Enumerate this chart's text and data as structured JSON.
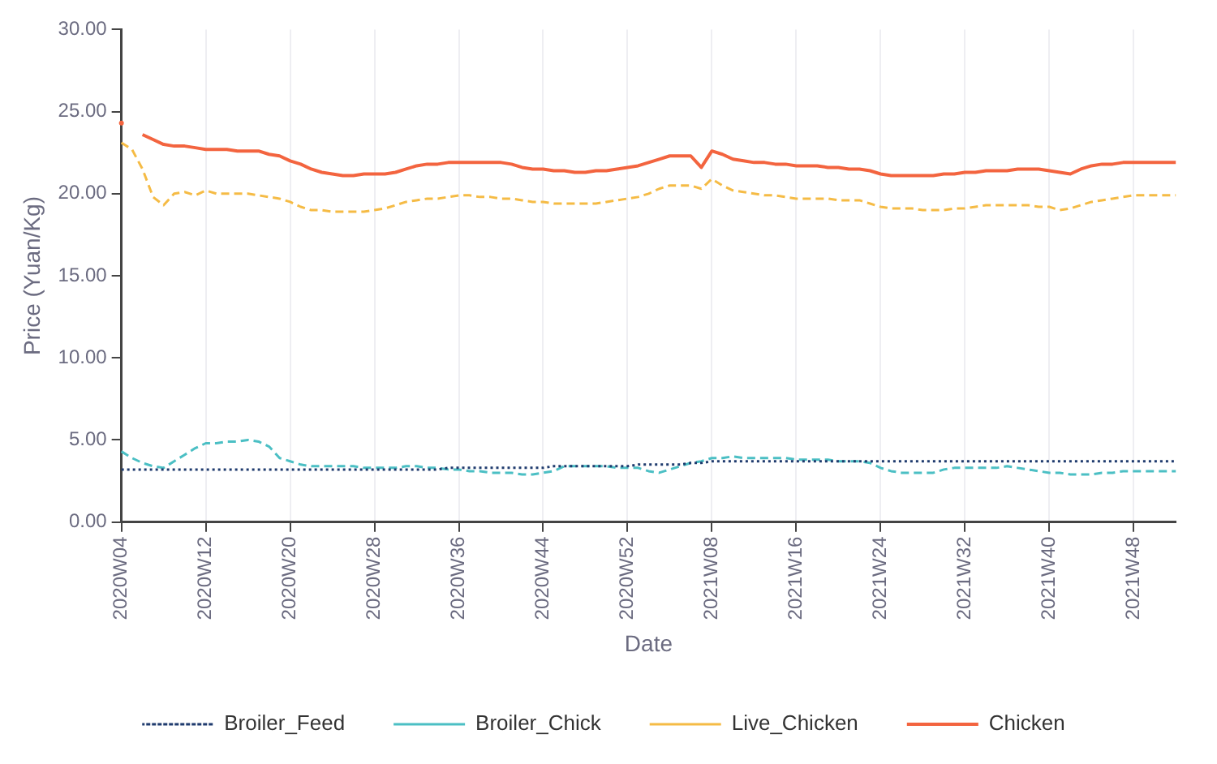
{
  "chart_data": {
    "type": "line",
    "xlabel": "Date",
    "ylabel": "Price (Yuan/Kg)",
    "categories": [
      "2020W04",
      null,
      null,
      null,
      null,
      null,
      null,
      null,
      "2020W12",
      null,
      null,
      null,
      null,
      null,
      null,
      null,
      "2020W20",
      null,
      null,
      null,
      null,
      null,
      null,
      null,
      "2020W28",
      null,
      null,
      null,
      null,
      null,
      null,
      null,
      "2020W36",
      null,
      null,
      null,
      null,
      null,
      null,
      null,
      "2020W44",
      null,
      null,
      null,
      null,
      null,
      null,
      null,
      "2020W52",
      null,
      null,
      null,
      null,
      null,
      null,
      null,
      "2021W08",
      null,
      null,
      null,
      null,
      null,
      null,
      null,
      "2021W16",
      null,
      null,
      null,
      null,
      null,
      null,
      null,
      "2021W24",
      null,
      null,
      null,
      null,
      null,
      null,
      null,
      "2021W32",
      null,
      null,
      null,
      null,
      null,
      null,
      null,
      "2021W40",
      null,
      null,
      null,
      null,
      null,
      null,
      null,
      "2021W48",
      null,
      null,
      null,
      null
    ],
    "ylim": [
      0,
      30
    ],
    "yticks": [
      {
        "value": 0,
        "label": "0.00"
      },
      {
        "value": 5,
        "label": "5.00"
      },
      {
        "value": 10,
        "label": "10.00"
      },
      {
        "value": 15,
        "label": "15.00"
      },
      {
        "value": 20,
        "label": "20.00"
      },
      {
        "value": 25,
        "label": "25.00"
      },
      {
        "value": 30,
        "label": "30.00"
      }
    ],
    "grid": "x",
    "legend": "bottom",
    "marker": "none",
    "series": [
      {
        "name": "Broiler_Feed",
        "color": "#1f3b6e",
        "line_style": "dotted",
        "values": [
          3.2,
          3.2,
          3.2,
          3.2,
          3.2,
          3.2,
          3.2,
          3.2,
          3.2,
          3.2,
          3.2,
          3.2,
          3.2,
          3.2,
          3.2,
          3.2,
          3.2,
          3.2,
          3.2,
          3.2,
          3.2,
          3.2,
          3.2,
          3.2,
          3.2,
          3.2,
          3.2,
          3.2,
          3.2,
          3.2,
          3.2,
          3.3,
          3.3,
          3.3,
          3.3,
          3.3,
          3.3,
          3.3,
          3.3,
          3.3,
          3.3,
          3.4,
          3.4,
          3.4,
          3.4,
          3.4,
          3.4,
          3.4,
          3.4,
          3.5,
          3.5,
          3.5,
          3.5,
          3.5,
          3.6,
          3.6,
          3.7,
          3.7,
          3.7,
          3.7,
          3.7,
          3.7,
          3.7,
          3.7,
          3.7,
          3.7,
          3.7,
          3.7,
          3.7,
          3.7,
          3.7,
          3.7,
          3.7,
          3.7,
          3.7,
          3.7,
          3.7,
          3.7,
          3.7,
          3.7,
          3.7,
          3.7,
          3.7,
          3.7,
          3.7,
          3.7,
          3.7,
          3.7,
          3.7,
          3.7,
          3.7,
          3.7,
          3.7,
          3.7,
          3.7,
          3.7,
          3.7,
          3.7,
          3.7,
          3.7,
          3.7
        ]
      },
      {
        "name": "Broiler_Chick",
        "color": "#4bbfc4",
        "line_style": "dashed",
        "values": [
          4.3,
          3.9,
          3.6,
          3.4,
          3.3,
          3.7,
          4.1,
          4.5,
          4.8,
          4.8,
          4.9,
          4.9,
          5.0,
          4.9,
          4.6,
          3.9,
          3.7,
          3.5,
          3.4,
          3.4,
          3.4,
          3.4,
          3.4,
          3.3,
          3.3,
          3.3,
          3.3,
          3.4,
          3.4,
          3.3,
          3.3,
          3.2,
          3.2,
          3.1,
          3.1,
          3.0,
          3.0,
          3.0,
          2.9,
          2.9,
          3.0,
          3.1,
          3.4,
          3.4,
          3.4,
          3.4,
          3.4,
          3.3,
          3.3,
          3.3,
          3.1,
          3.0,
          3.2,
          3.4,
          3.6,
          3.7,
          3.9,
          3.9,
          4.0,
          3.9,
          3.9,
          3.9,
          3.9,
          3.9,
          3.8,
          3.8,
          3.8,
          3.8,
          3.7,
          3.7,
          3.7,
          3.6,
          3.3,
          3.1,
          3.0,
          3.0,
          3.0,
          3.0,
          3.2,
          3.3,
          3.3,
          3.3,
          3.3,
          3.3,
          3.4,
          3.3,
          3.2,
          3.1,
          3.0,
          3.0,
          2.9,
          2.9,
          2.9,
          3.0,
          3.0,
          3.1,
          3.1,
          3.1,
          3.1,
          3.1,
          3.1
        ]
      },
      {
        "name": "Live_Chicken",
        "color": "#f5bb45",
        "line_style": "dashed",
        "values": [
          23.1,
          22.7,
          21.5,
          19.8,
          19.3,
          20.0,
          20.1,
          19.9,
          20.2,
          20.0,
          20.0,
          20.0,
          20.0,
          19.9,
          19.8,
          19.7,
          19.5,
          19.2,
          19.0,
          19.0,
          18.9,
          18.9,
          18.9,
          18.9,
          19.0,
          19.1,
          19.3,
          19.5,
          19.6,
          19.7,
          19.7,
          19.8,
          19.9,
          19.9,
          19.8,
          19.8,
          19.7,
          19.7,
          19.6,
          19.5,
          19.5,
          19.4,
          19.4,
          19.4,
          19.4,
          19.4,
          19.5,
          19.6,
          19.7,
          19.8,
          20.0,
          20.3,
          20.5,
          20.5,
          20.5,
          20.3,
          20.9,
          20.5,
          20.2,
          20.1,
          20.0,
          19.9,
          19.9,
          19.8,
          19.7,
          19.7,
          19.7,
          19.7,
          19.6,
          19.6,
          19.6,
          19.4,
          19.2,
          19.1,
          19.1,
          19.1,
          19.0,
          19.0,
          19.0,
          19.1,
          19.1,
          19.2,
          19.3,
          19.3,
          19.3,
          19.3,
          19.3,
          19.2,
          19.2,
          19.0,
          19.1,
          19.3,
          19.5,
          19.6,
          19.7,
          19.8,
          19.9,
          19.9,
          19.9,
          19.9,
          19.9
        ]
      },
      {
        "name": "Chicken",
        "color": "#f3643f",
        "line_style": "solid",
        "values": [
          24.3,
          null,
          23.6,
          23.3,
          23.0,
          22.9,
          22.9,
          22.8,
          22.7,
          22.7,
          22.7,
          22.6,
          22.6,
          22.6,
          22.4,
          22.3,
          22.0,
          21.8,
          21.5,
          21.3,
          21.2,
          21.1,
          21.1,
          21.2,
          21.2,
          21.2,
          21.3,
          21.5,
          21.7,
          21.8,
          21.8,
          21.9,
          21.9,
          21.9,
          21.9,
          21.9,
          21.9,
          21.8,
          21.6,
          21.5,
          21.5,
          21.4,
          21.4,
          21.3,
          21.3,
          21.4,
          21.4,
          21.5,
          21.6,
          21.7,
          21.9,
          22.1,
          22.3,
          22.3,
          22.3,
          21.6,
          22.6,
          22.4,
          22.1,
          22.0,
          21.9,
          21.9,
          21.8,
          21.8,
          21.7,
          21.7,
          21.7,
          21.6,
          21.6,
          21.5,
          21.5,
          21.4,
          21.2,
          21.1,
          21.1,
          21.1,
          21.1,
          21.1,
          21.2,
          21.2,
          21.3,
          21.3,
          21.4,
          21.4,
          21.4,
          21.5,
          21.5,
          21.5,
          21.4,
          21.3,
          21.2,
          21.5,
          21.7,
          21.8,
          21.8,
          21.9,
          21.9,
          21.9,
          21.9,
          21.9,
          21.9
        ]
      }
    ]
  }
}
